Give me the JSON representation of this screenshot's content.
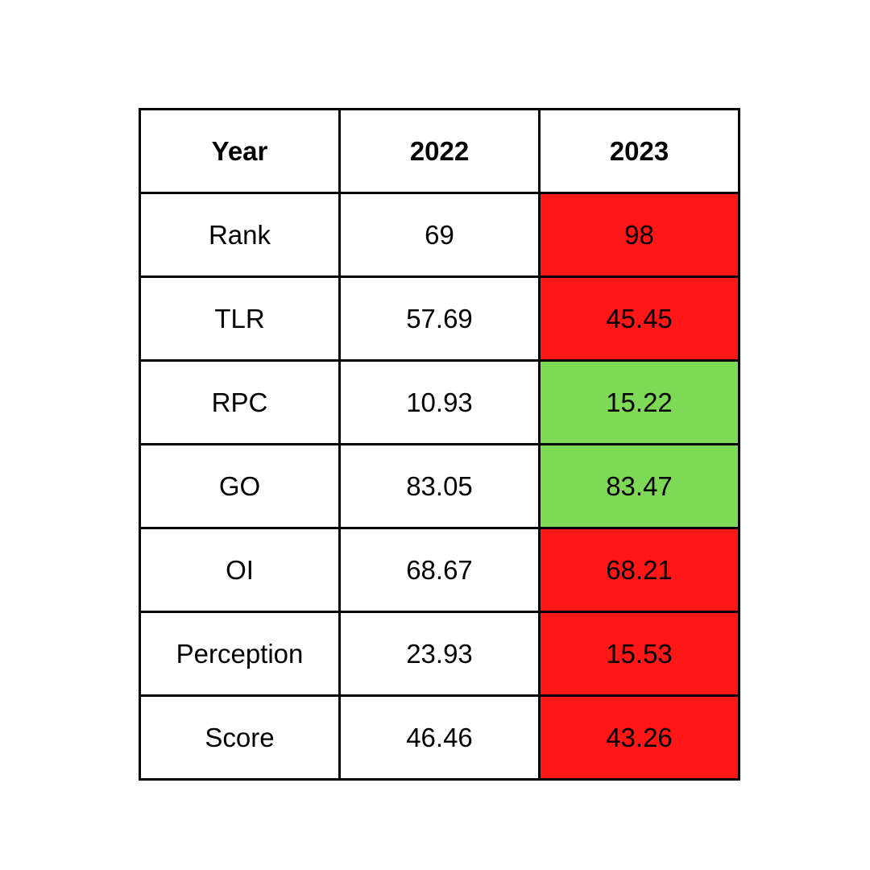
{
  "table": {
    "header": [
      "Year",
      "2022",
      "2023"
    ],
    "rows": [
      {
        "label": "Rank",
        "v2022": "69",
        "v2023": "98",
        "trend": "decline"
      },
      {
        "label": "TLR",
        "v2022": "57.69",
        "v2023": "45.45",
        "trend": "decline"
      },
      {
        "label": "RPC",
        "v2022": "10.93",
        "v2023": "15.22",
        "trend": "improve"
      },
      {
        "label": "GO",
        "v2022": "83.05",
        "v2023": "83.47",
        "trend": "improve"
      },
      {
        "label": "OI",
        "v2022": "68.67",
        "v2023": "68.21",
        "trend": "decline"
      },
      {
        "label": "Perception",
        "v2022": "23.93",
        "v2023": "15.53",
        "trend": "decline"
      },
      {
        "label": "Score",
        "v2022": "46.46",
        "v2023": "43.26",
        "trend": "decline"
      }
    ],
    "colors": {
      "decline": "#FF1616",
      "improve": "#7ED957",
      "neutral": "#FFFFFF",
      "border": "#000000"
    }
  },
  "chart_data": {
    "type": "table",
    "title": "",
    "columns": [
      "Year",
      "2022",
      "2023"
    ],
    "categories": [
      "Rank",
      "TLR",
      "RPC",
      "GO",
      "OI",
      "Perception",
      "Score"
    ],
    "series": [
      {
        "name": "2022",
        "values": [
          69,
          57.69,
          10.93,
          83.05,
          68.67,
          23.93,
          46.46
        ]
      },
      {
        "name": "2023",
        "values": [
          98,
          45.45,
          15.22,
          83.47,
          68.21,
          15.53,
          43.26
        ]
      }
    ],
    "cell_highlights_2023": [
      "red",
      "red",
      "green",
      "green",
      "red",
      "red",
      "red"
    ],
    "legend_position": "none",
    "grid": true
  }
}
